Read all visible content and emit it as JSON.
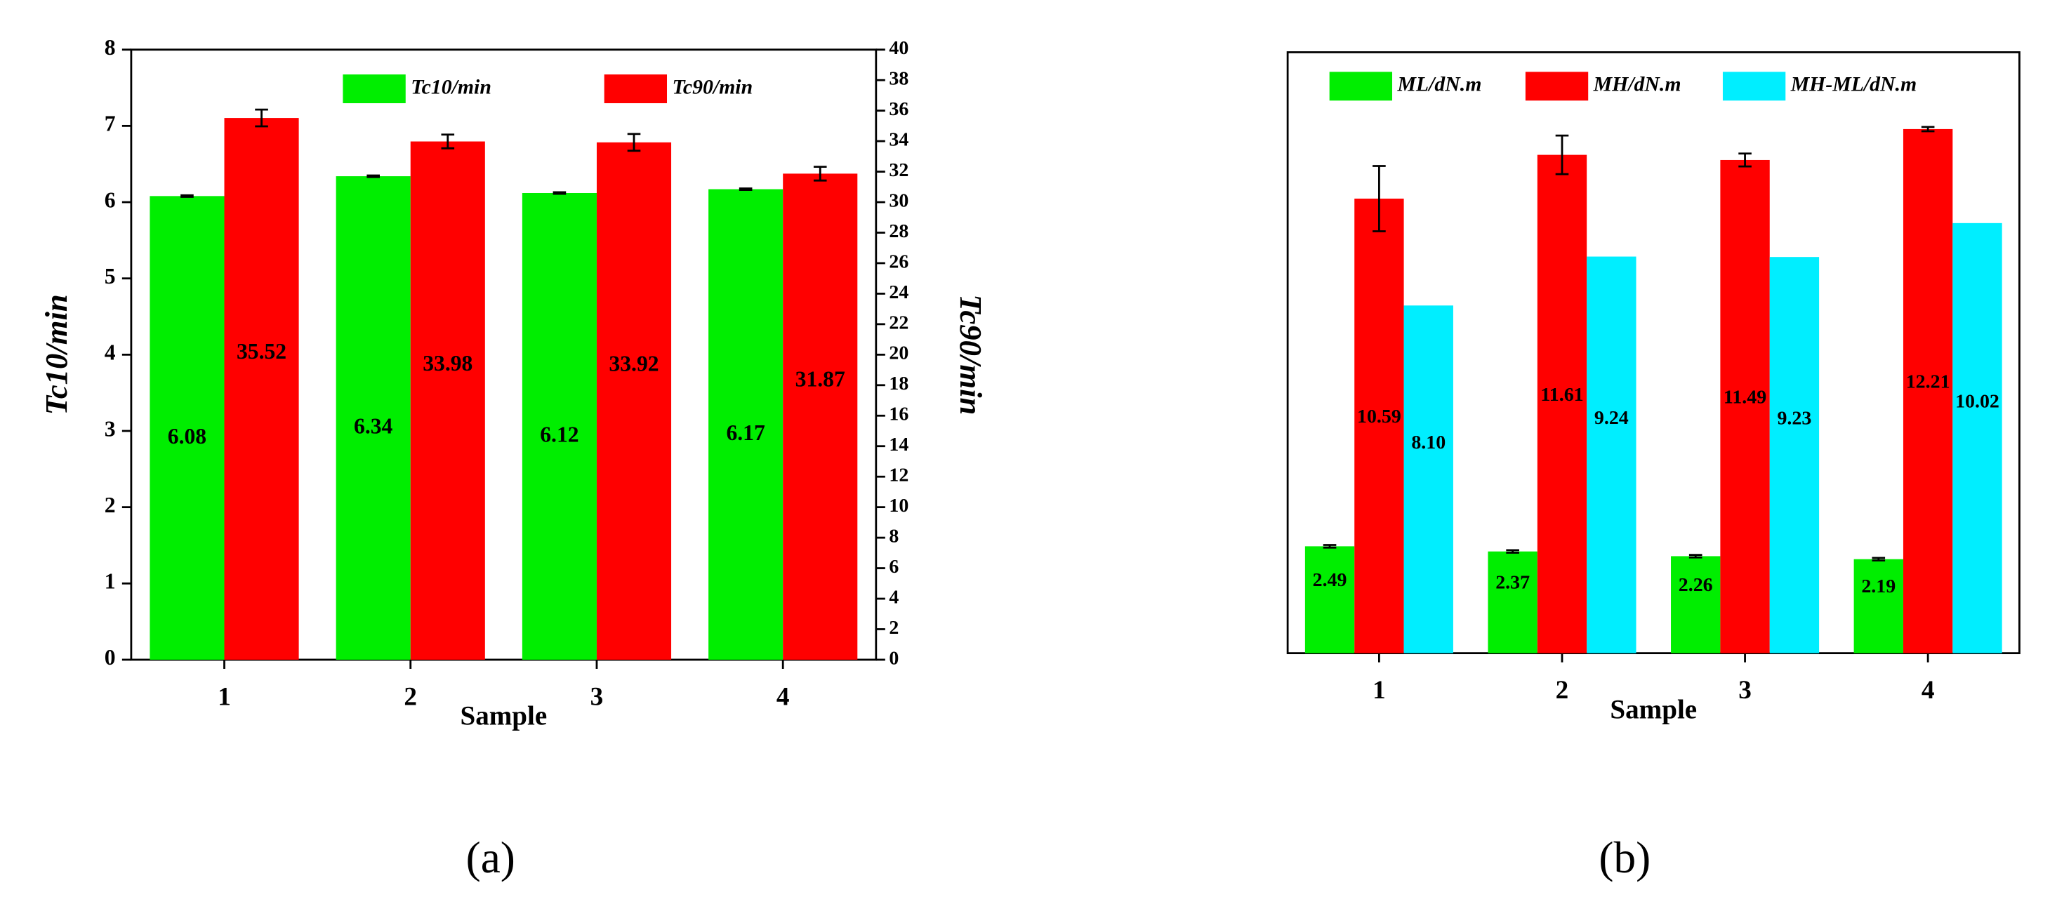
{
  "chart_data": [
    {
      "type": "bar",
      "caption": "(a)",
      "xlabel": "Sample",
      "ylabel": "Tc10/min",
      "y2label": "Tc90/min",
      "categories": [
        "1",
        "2",
        "3",
        "4"
      ],
      "ylim": [
        0,
        8
      ],
      "yticks": [
        0,
        1,
        2,
        3,
        4,
        5,
        6,
        7,
        8
      ],
      "y2lim": [
        0,
        40
      ],
      "y2ticks": [
        0,
        2,
        4,
        6,
        8,
        10,
        12,
        14,
        16,
        18,
        20,
        22,
        24,
        26,
        28,
        30,
        32,
        34,
        36,
        38,
        40
      ],
      "series": [
        {
          "name": "Tc10/min",
          "color": "#00ee00",
          "values": [
            6.08,
            6.34,
            6.12,
            6.17
          ],
          "errors": [
            0.01,
            0.01,
            0.01,
            0.01
          ]
        },
        {
          "name": "Tc90/min",
          "color": "#ff0000",
          "axis": "y2",
          "values": [
            35.52,
            33.98,
            33.92,
            31.87
          ],
          "errors": [
            0.55,
            0.45,
            0.55,
            0.45
          ]
        }
      ]
    },
    {
      "type": "bar",
      "caption": "(b)",
      "xlabel": "Sample",
      "categories": [
        "1",
        "2",
        "3",
        "4"
      ],
      "ylim": [
        0,
        14
      ],
      "series": [
        {
          "name": "ML/dN.m",
          "color": "#00ee00",
          "values": [
            2.49,
            2.37,
            2.26,
            2.19
          ],
          "errors": [
            0.03,
            0.03,
            0.03,
            0.03
          ]
        },
        {
          "name": "MH/dN.m",
          "color": "#ff0000",
          "values": [
            10.59,
            11.61,
            11.49,
            12.21
          ],
          "errors": [
            0.76,
            0.45,
            0.15,
            0.05
          ]
        },
        {
          "name": "MH-ML/dN.m",
          "color": "#00eeff",
          "values": [
            8.1,
            9.24,
            9.23,
            10.02
          ],
          "value_labels": [
            "8.10",
            "9.24",
            "9.23",
            "10.02"
          ]
        }
      ]
    }
  ]
}
